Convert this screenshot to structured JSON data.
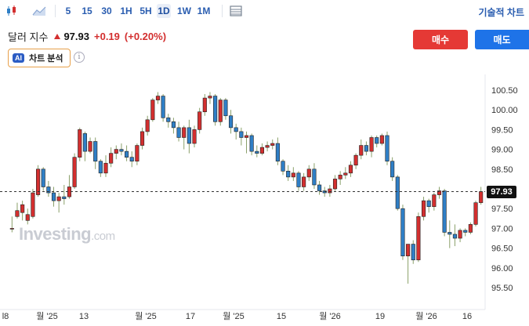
{
  "toolbar": {
    "intervals": [
      "5",
      "15",
      "30",
      "1H",
      "5H",
      "1D",
      "1W",
      "1M"
    ],
    "active_interval": "1D",
    "tech_link": "기술적 차트 "
  },
  "instrument": {
    "name": "달러 지수",
    "price": "97.93",
    "change": "+0.19",
    "change_pct": "(+0.20%)"
  },
  "actions": {
    "buy": "매수",
    "sell": "매도"
  },
  "ai": {
    "badge": "AI",
    "label": "차트 분석",
    "info": "i"
  },
  "watermark": {
    "brand": "Investing",
    "suffix": ".com"
  },
  "colors": {
    "up": "#d32f2f",
    "down": "#2f7fc6",
    "buy": "#e53935",
    "sell": "#1e73e8"
  },
  "chart_data": {
    "type": "candlestick",
    "y_ticks": [
      "100.50",
      "100.00",
      "99.50",
      "99.00",
      "98.50",
      "98.00",
      "97.50",
      "97.00",
      "96.50",
      "96.00",
      "95.50"
    ],
    "ylim": [
      95.2,
      100.8
    ],
    "x_labels": [
      "l8",
      "월 '25",
      "13",
      "월 '25",
      "17",
      "월 '25",
      "15",
      "월 '26",
      "19",
      "월 '26",
      "16"
    ],
    "current_price": "97.93",
    "candles": [
      [
        97.0,
        97.3,
        96.9,
        97.0
      ],
      [
        97.3,
        97.65,
        97.25,
        97.45
      ],
      [
        97.4,
        97.7,
        97.2,
        97.6
      ],
      [
        97.2,
        97.5,
        97.1,
        97.35
      ],
      [
        97.3,
        98.0,
        97.25,
        97.9
      ],
      [
        97.85,
        98.6,
        97.8,
        98.5
      ],
      [
        98.5,
        98.55,
        97.95,
        98.05
      ],
      [
        98.05,
        98.2,
        97.8,
        97.9
      ],
      [
        97.9,
        98.05,
        97.55,
        97.7
      ],
      [
        97.7,
        97.9,
        97.4,
        97.8
      ],
      [
        97.8,
        98.1,
        97.6,
        97.75
      ],
      [
        97.8,
        98.35,
        97.75,
        98.05
      ],
      [
        98.05,
        98.9,
        98.0,
        98.8
      ],
      [
        98.8,
        99.55,
        98.7,
        99.5
      ],
      [
        99.4,
        99.45,
        98.7,
        98.95
      ],
      [
        98.95,
        99.3,
        98.9,
        99.2
      ],
      [
        99.2,
        99.3,
        98.5,
        98.7
      ],
      [
        98.7,
        98.75,
        98.3,
        98.4
      ],
      [
        98.4,
        98.85,
        98.3,
        98.65
      ],
      [
        98.65,
        99.05,
        98.55,
        98.9
      ],
      [
        98.9,
        99.1,
        98.75,
        99.0
      ],
      [
        99.0,
        99.15,
        98.85,
        98.95
      ],
      [
        98.95,
        99.1,
        98.7,
        98.8
      ],
      [
        98.8,
        98.95,
        98.55,
        98.7
      ],
      [
        98.7,
        99.15,
        98.6,
        99.1
      ],
      [
        99.1,
        99.55,
        99.0,
        99.45
      ],
      [
        99.45,
        99.85,
        99.35,
        99.75
      ],
      [
        99.75,
        100.3,
        99.7,
        100.25
      ],
      [
        100.25,
        100.45,
        100.15,
        100.35
      ],
      [
        100.35,
        100.4,
        99.7,
        99.8
      ],
      [
        99.8,
        99.9,
        99.55,
        99.7
      ],
      [
        99.7,
        99.8,
        99.4,
        99.55
      ],
      [
        99.55,
        99.7,
        99.2,
        99.3
      ],
      [
        99.3,
        99.6,
        99.0,
        99.55
      ],
      [
        99.55,
        99.75,
        98.9,
        99.15
      ],
      [
        99.15,
        99.6,
        99.05,
        99.5
      ],
      [
        99.5,
        100.05,
        99.4,
        99.95
      ],
      [
        99.95,
        100.4,
        99.85,
        100.3
      ],
      [
        100.3,
        100.45,
        100.15,
        100.35
      ],
      [
        100.35,
        100.4,
        99.6,
        99.7
      ],
      [
        99.7,
        100.3,
        99.6,
        100.25
      ],
      [
        100.25,
        100.3,
        99.75,
        99.85
      ],
      [
        99.85,
        100.0,
        99.4,
        99.55
      ],
      [
        99.55,
        99.65,
        99.25,
        99.45
      ],
      [
        99.45,
        99.55,
        99.1,
        99.3
      ],
      [
        99.3,
        99.45,
        98.9,
        99.35
      ],
      [
        99.35,
        99.4,
        98.85,
        98.95
      ],
      [
        98.95,
        99.1,
        98.8,
        98.9
      ],
      [
        98.9,
        99.15,
        98.85,
        99.05
      ],
      [
        99.05,
        99.2,
        98.95,
        99.1
      ],
      [
        99.1,
        99.25,
        99.0,
        99.15
      ],
      [
        99.15,
        99.3,
        98.6,
        98.7
      ],
      [
        98.7,
        98.75,
        98.35,
        98.45
      ],
      [
        98.45,
        98.6,
        98.2,
        98.3
      ],
      [
        98.3,
        98.55,
        98.2,
        98.4
      ],
      [
        98.4,
        98.45,
        97.95,
        98.05
      ],
      [
        98.05,
        98.4,
        97.95,
        98.3
      ],
      [
        98.3,
        98.6,
        98.2,
        98.5
      ],
      [
        98.5,
        98.65,
        98.0,
        98.1
      ],
      [
        98.1,
        98.2,
        97.85,
        97.95
      ],
      [
        97.95,
        98.05,
        97.8,
        97.9
      ],
      [
        97.9,
        98.1,
        97.8,
        98.0
      ],
      [
        98.0,
        98.35,
        97.95,
        98.25
      ],
      [
        98.25,
        98.45,
        98.1,
        98.35
      ],
      [
        98.35,
        98.55,
        98.25,
        98.4
      ],
      [
        98.4,
        98.7,
        98.3,
        98.6
      ],
      [
        98.6,
        98.9,
        98.5,
        98.85
      ],
      [
        98.85,
        99.25,
        98.75,
        99.1
      ],
      [
        99.1,
        99.2,
        98.85,
        98.95
      ],
      [
        98.95,
        99.35,
        98.8,
        99.3
      ],
      [
        99.3,
        99.35,
        99.05,
        99.15
      ],
      [
        99.15,
        99.4,
        99.1,
        99.35
      ],
      [
        99.35,
        99.45,
        98.6,
        98.7
      ],
      [
        98.7,
        98.8,
        98.2,
        98.3
      ],
      [
        98.3,
        98.35,
        97.45,
        97.5
      ],
      [
        97.5,
        97.6,
        96.2,
        96.3
      ],
      [
        96.3,
        96.6,
        95.6,
        96.6
      ],
      [
        96.6,
        96.7,
        96.1,
        96.2
      ],
      [
        96.2,
        97.4,
        96.15,
        97.3
      ],
      [
        97.3,
        97.8,
        97.2,
        97.7
      ],
      [
        97.7,
        97.75,
        97.4,
        97.55
      ],
      [
        97.55,
        97.9,
        97.45,
        97.85
      ],
      [
        97.85,
        98.05,
        97.75,
        97.95
      ],
      [
        97.95,
        98.0,
        96.8,
        96.9
      ],
      [
        96.9,
        97.2,
        96.5,
        96.85
      ],
      [
        96.85,
        97.1,
        96.55,
        96.75
      ],
      [
        96.75,
        97.0,
        96.65,
        96.95
      ],
      [
        96.95,
        97.0,
        96.8,
        96.9
      ],
      [
        96.9,
        97.15,
        96.85,
        97.1
      ],
      [
        97.1,
        97.7,
        97.05,
        97.65
      ],
      [
        97.65,
        98.05,
        97.6,
        97.93
      ]
    ]
  }
}
